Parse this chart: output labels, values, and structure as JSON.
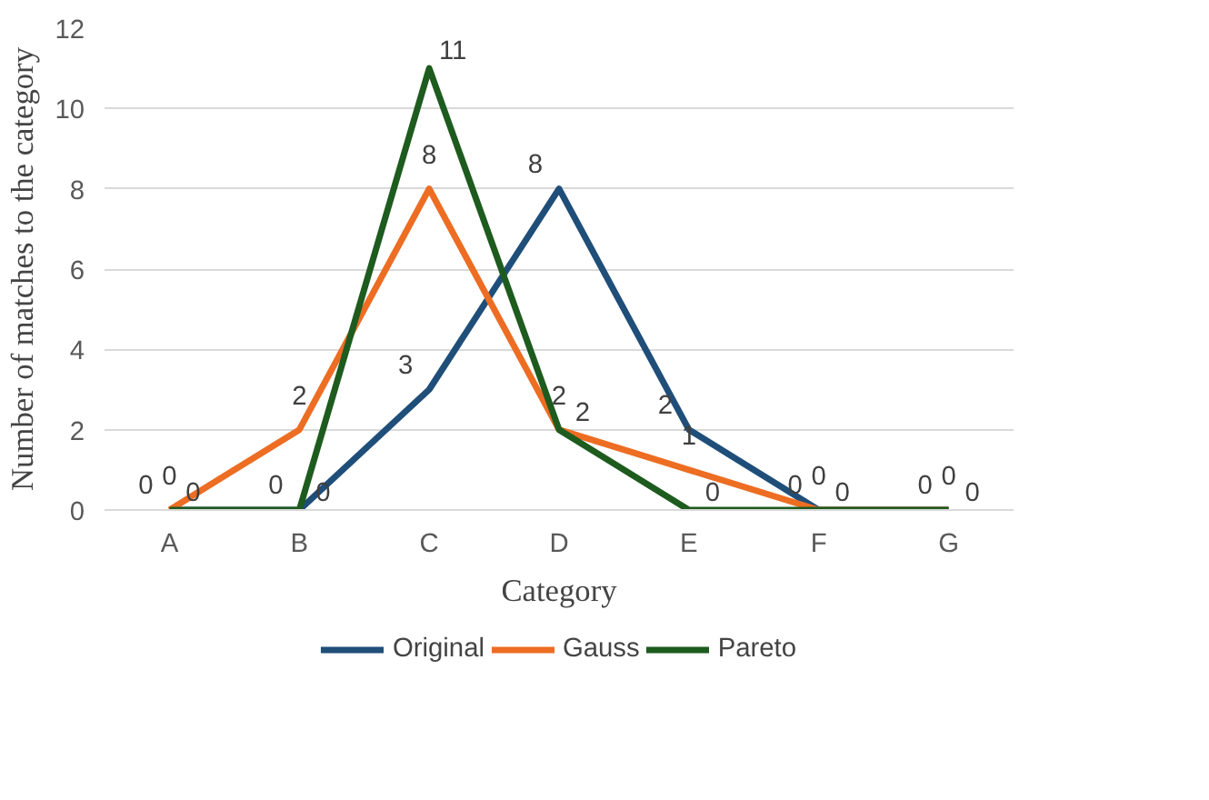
{
  "chart_data": {
    "type": "line",
    "xlabel": "Category",
    "ylabel": "Number of matches to the category",
    "categories": [
      "A",
      "B",
      "C",
      "D",
      "E",
      "F",
      "G"
    ],
    "series": [
      {
        "name": "Original",
        "color": "#1f4e79",
        "values": [
          0,
          0,
          3,
          8,
          2,
          0,
          0
        ]
      },
      {
        "name": "Gauss",
        "color": "#ed6d23",
        "values": [
          0,
          2,
          8,
          2,
          1,
          0,
          0
        ]
      },
      {
        "name": "Pareto",
        "color": "#1e5b1e",
        "values": [
          0,
          0,
          11,
          2,
          0,
          0,
          0
        ]
      }
    ],
    "ylim": [
      0,
      12
    ],
    "yticks": [
      0,
      2,
      4,
      6,
      8,
      10,
      12
    ],
    "grid": "y",
    "legend": "bottom",
    "data_labels": true,
    "marker": "none",
    "line_style": "solid"
  }
}
